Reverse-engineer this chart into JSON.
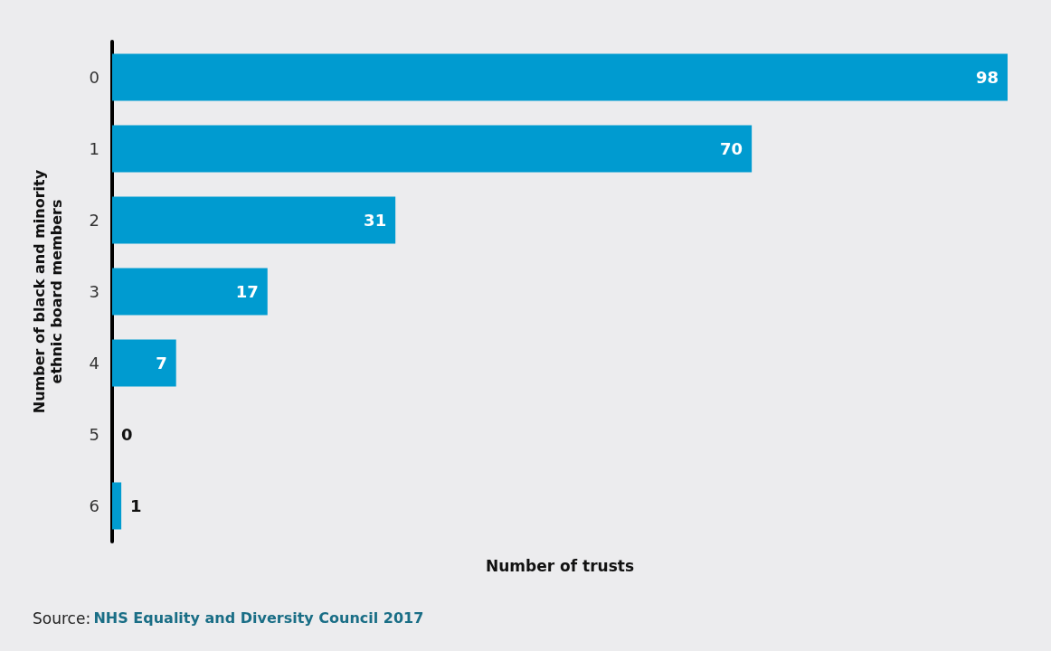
{
  "chart_data": {
    "type": "bar",
    "orientation": "horizontal",
    "data_labels": true,
    "categories": [
      "0",
      "1",
      "2",
      "3",
      "4",
      "5",
      "6"
    ],
    "values": [
      98,
      70,
      31,
      17,
      7,
      0,
      1
    ],
    "color": "#009bd0",
    "xlabel": "Number of trusts",
    "ylabel": "Number of black and minority ethnic board members",
    "annotations": [
      "Source: NHS Equality and Diversity Council 2017"
    ],
    "grid": false
  }
}
